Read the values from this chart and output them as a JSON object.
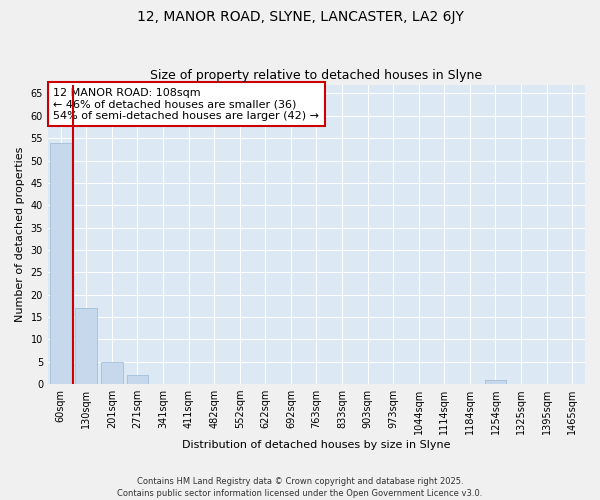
{
  "title": "12, MANOR ROAD, SLYNE, LANCASTER, LA2 6JY",
  "subtitle": "Size of property relative to detached houses in Slyne",
  "xlabel": "Distribution of detached houses by size in Slyne",
  "ylabel": "Number of detached properties",
  "categories": [
    "60sqm",
    "130sqm",
    "201sqm",
    "271sqm",
    "341sqm",
    "411sqm",
    "482sqm",
    "552sqm",
    "622sqm",
    "692sqm",
    "763sqm",
    "833sqm",
    "903sqm",
    "973sqm",
    "1044sqm",
    "1114sqm",
    "1184sqm",
    "1254sqm",
    "1325sqm",
    "1395sqm",
    "1465sqm"
  ],
  "values": [
    54,
    17,
    5,
    2,
    0,
    0,
    0,
    0,
    0,
    0,
    0,
    0,
    0,
    0,
    0,
    0,
    0,
    1,
    0,
    0,
    0
  ],
  "bar_color": "#c5d8ec",
  "bar_edge_color": "#9ab8d4",
  "vline_color": "#cc0000",
  "vline_x_index": 0.5,
  "annotation_text": "12 MANOR ROAD: 108sqm\n← 46% of detached houses are smaller (36)\n54% of semi-detached houses are larger (42) →",
  "annotation_box_color": "#ffffff",
  "annotation_border_color": "#cc0000",
  "ylim": [
    0,
    67
  ],
  "yticks": [
    0,
    5,
    10,
    15,
    20,
    25,
    30,
    35,
    40,
    45,
    50,
    55,
    60,
    65
  ],
  "fig_bg_color": "#f0f0f0",
  "plot_bg_color": "#dce9f5",
  "footer": "Contains HM Land Registry data © Crown copyright and database right 2025.\nContains public sector information licensed under the Open Government Licence v3.0.",
  "title_fontsize": 10,
  "subtitle_fontsize": 9,
  "tick_fontsize": 7,
  "xlabel_fontsize": 8,
  "ylabel_fontsize": 8,
  "annotation_fontsize": 8,
  "footer_fontsize": 6
}
